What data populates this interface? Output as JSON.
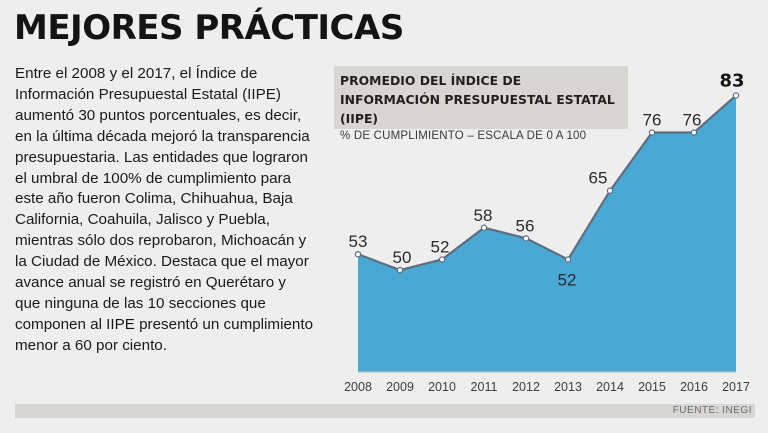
{
  "heading": "MEJORES PRÁCTICAS",
  "body_text": "Entre el 2008 y el 2017, el Índice de Información Presupuestal Estatal (IIPE) aumentó 30 puntos porcentuales, es decir, en la última década mejoró la transparencia presupuestaria. Las entidades que lograron el umbral de 100% de cumplimiento para este año fueron Colima, Chihuahua, Baja California, Coahuila, Jalisco y Puebla, mientras sólo dos reprobaron, Michoacán y la Ciudad de México. Destaca que el mayor avance anual se registró en Querétaro y que ninguna de las 10 secciones que componen al IIPE presentó un cumplimiento menor a 60 por ciento.",
  "source": "FUENTE: INEGI",
  "colors": {
    "area": "#4aa8d4",
    "line": "#5c6f80",
    "background": "#efeeee"
  },
  "chart_data": {
    "type": "area",
    "title": "PROMEDIO DEL ÍNDICE DE INFORMACIÓN PRESUPUESTAL ESTATAL (IIPE)",
    "subtitle": "% DE CUMPLIMIENTO – ESCALA DE 0 A 100",
    "categories": [
      "2008",
      "2009",
      "2010",
      "2011",
      "2012",
      "2013",
      "2014",
      "2015",
      "2016",
      "2017"
    ],
    "values": [
      53,
      50,
      52,
      58,
      56,
      52,
      65,
      76,
      76,
      83
    ],
    "labels": [
      "53",
      "50",
      "52",
      "58",
      "56",
      "52",
      "65",
      "76",
      "76",
      "83"
    ],
    "xlabel": "",
    "ylabel": "",
    "ylim": [
      0,
      100
    ]
  }
}
